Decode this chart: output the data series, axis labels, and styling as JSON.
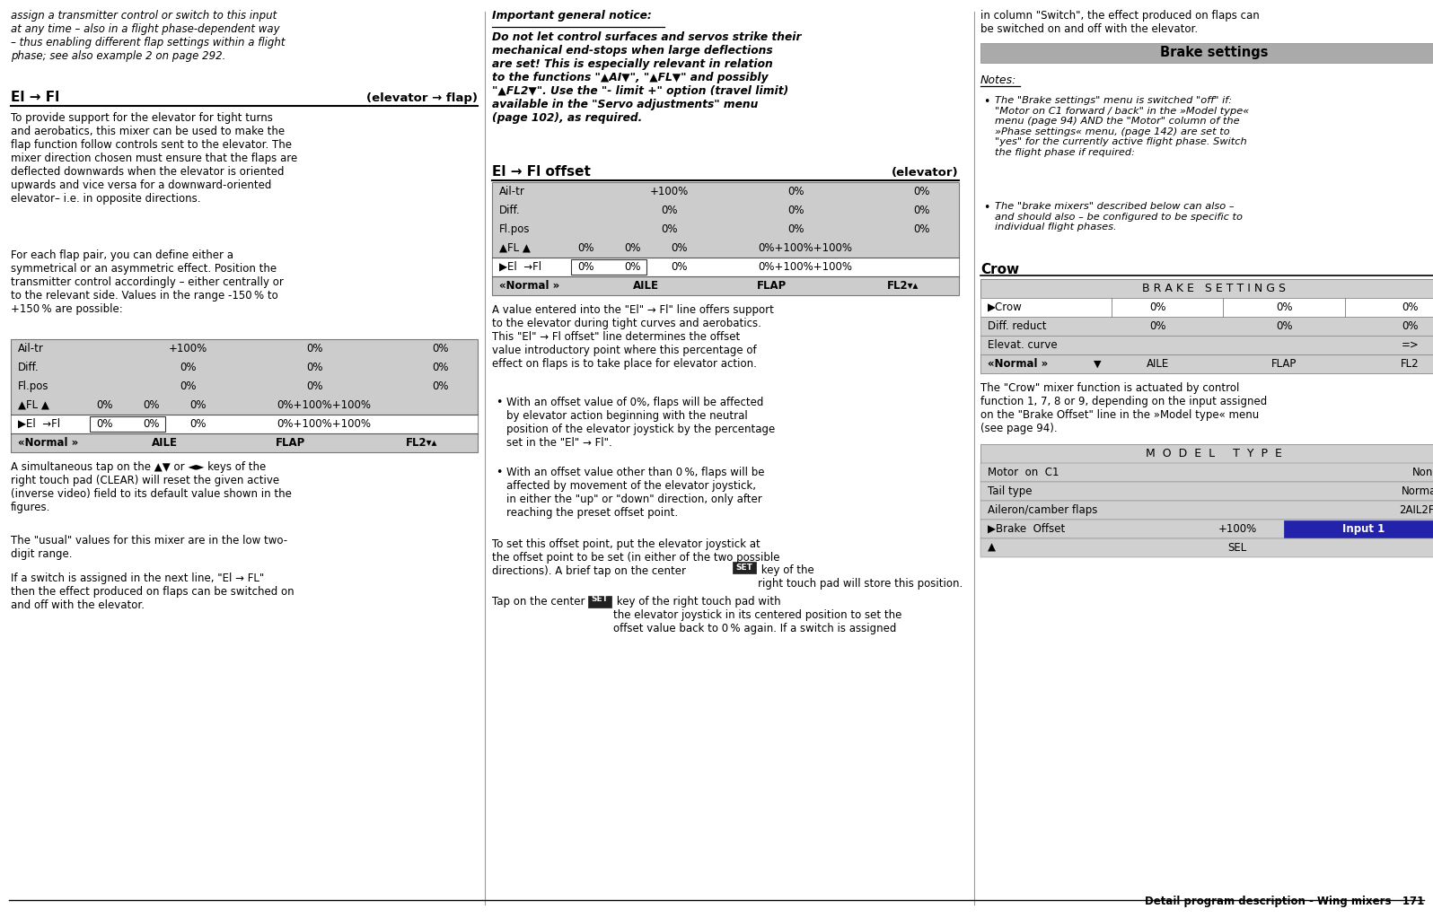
{
  "page_bg": "#ffffff",
  "col1_italic_top": "assign a transmitter control or switch to this input\nat any time – also in a flight phase-dependent way\n– thus enabling different flap settings within a flight\nphase; see also example 2 on page 292.",
  "el_fl_title": "El → Fl",
  "el_fl_subtitle": "(elevator → flap)",
  "el_fl_body1": "To provide support for the elevator for tight turns\nand aerobatics, this mixer can be used to make the\nflap function follow controls sent to the elevator. The\nmixer direction chosen must ensure that the flaps are\ndeflected downwards when the elevator is oriented\nupwards and vice versa for a downward-oriented\nelevator– i.e. in opposite directions.",
  "el_fl_body2": "For each flap pair, you can define either a\nsymmetrical or an asymmetric effect. Position the\ntransmitter control accordingly – either centrally or\nto the relevant side. Values in the range -150 % to\n+150 % are possible:",
  "important_title": "Important general notice:",
  "important_body": "Do not let control surfaces and servos strike their\nmechanical end-stops when large deflections\nare set! This is especially relevant in relation\nto the functions \"▲AI▼\", \"▲FL▼\" and possibly\n\"▲FL2▼\". Use the \"- limit +\" option (travel limit)\navailable in the \"Servo adjustments\" menu\n(page 102), as required.",
  "el_fl_offset_title": "El → Fl offset",
  "el_fl_offset_subtitle": "(elevator)",
  "offset_body1": "A value entered into the \"El\" → Fl\" line offers support\nto the elevator during tight curves and aerobatics.\nThis \"El\" → Fl offset\" line determines the offset\nvalue introductory point where this percentage of\neffect on flaps is to take place for elevator action.",
  "bullet1": "With an offset value of 0%, flaps will be affected\nby elevator action beginning with the neutral\nposition of the elevator joystick by the percentage\nset in the \"El\" → Fl\".",
  "bullet2": "With an offset value other than 0 %, flaps will be\naffected by movement of the elevator joystick,\nin either the \"up\" or \"down\" direction, only after\nreaching the preset offset point.",
  "offset_body2": "To set this offset point, put the elevator joystick at\nthe offset point to be set (in either of the two possible\ndirections). A brief tap on the center ",
  "offset_body2b": " key of the\nright touch pad will store this position.",
  "offset_body3a": "Tap on the center ",
  "offset_body3b": " key of the right touch pad with\nthe elevator joystick in its centered position to set the\noffset value back to 0 % again. If a switch is assigned",
  "col3_top": "in column \"Switch\", the effect produced on flaps can\nbe switched on and off with the elevator.",
  "brake_settings_title": "Brake settings",
  "notes_title": "Notes:",
  "note1": "The \"Brake settings\" menu is switched \"off\" if:\n\"Motor on C1 forward / back\" in the »Model type«\nmenu (page 94) AND the \"Motor\" column of the\n»Phase settings« menu, (page 142) are set to\n\"yes\" for the currently active flight phase. Switch\nthe flight phase if required:",
  "note2": "The \"brake mixers\" described below can also –\nand should also – be configured to be specific to\nindividual flight phases.",
  "crow_title": "Crow",
  "brake_table_header": "B R A K E   S E T T I N G S",
  "crow_body": "The \"Crow\" mixer function is actuated by control\nfunction 1, 7, 8 or 9, depending on the input assigned\non the \"Brake Offset\" line in the »Model type« menu\n(see page 94).",
  "model_type_title": "M  O  D  E  L     T  Y  P  E",
  "clear_note": "A simultaneous tap on the ▲▼ or ◄► keys of the\nright touch pad (CLEAR) will reset the given active\n(inverse video) field to its default value shown in the\nfigures.",
  "usual_note": "The \"usual\" values for this mixer are in the low two-\ndigit range.",
  "switch_note": "If a switch is assigned in the next line, \"El → FL\"\nthen the effect produced on flaps can be switched on\nand off with the elevator.",
  "footer": "Detail program description - Wing mixers   171"
}
